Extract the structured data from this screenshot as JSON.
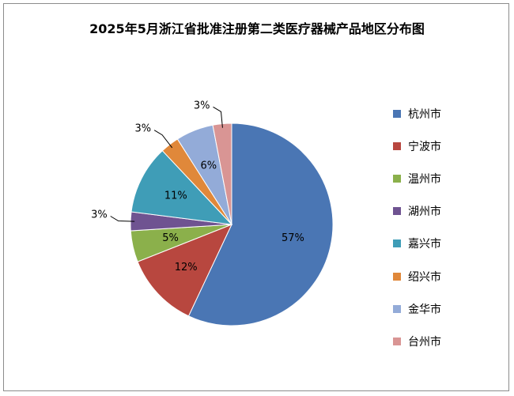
{
  "title": "2025年5月浙江省批准注册第二类医疗器械产品地区分布图",
  "chart_data": {
    "type": "pie",
    "categories": [
      "杭州市",
      "宁波市",
      "温州市",
      "湖州市",
      "嘉兴市",
      "绍兴市",
      "金华市",
      "台州市"
    ],
    "values": [
      57,
      12,
      5,
      3,
      11,
      3,
      6,
      3
    ],
    "labels": [
      "57%",
      "12%",
      "5%",
      "3%",
      "11%",
      "3%",
      "6%",
      "3%"
    ],
    "colors": [
      "#4a76b4",
      "#b8473f",
      "#8bb04b",
      "#6f5391",
      "#3f9db7",
      "#e0883a",
      "#93abd8",
      "#d99594"
    ],
    "legend_position": "right",
    "start_angle_deg": 0,
    "direction": "clockwise"
  }
}
